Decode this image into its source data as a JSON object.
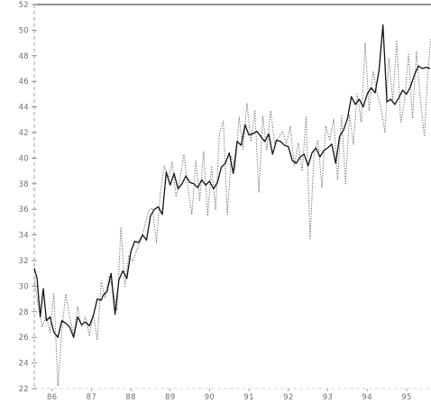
{
  "chart_data": {
    "type": "line",
    "title": "",
    "xlabel": "",
    "ylabel": "",
    "x_tick_labels": [
      "86",
      "87",
      "88",
      "89",
      "90",
      "91",
      "92",
      "93",
      "94",
      "95"
    ],
    "x_tick_positions": [
      1986,
      1987,
      1988,
      1989,
      1990,
      1991,
      1992,
      1993,
      1994,
      1995
    ],
    "xlim": [
      1985.55,
      1995.62
    ],
    "y_tick_labels": [
      "22",
      "24",
      "26",
      "28",
      "30",
      "32",
      "34",
      "36",
      "38",
      "40",
      "42",
      "44",
      "46",
      "48",
      "50",
      "52"
    ],
    "y_ticks": [
      22,
      24,
      26,
      28,
      30,
      32,
      34,
      36,
      38,
      40,
      42,
      44,
      46,
      48,
      50,
      52
    ],
    "ylim": [
      22,
      52
    ],
    "grid": false,
    "legend": "none",
    "series": [
      {
        "style": "solid",
        "color": "#111111",
        "x": [
          1985.55,
          1985.62,
          1985.7,
          1985.78,
          1985.86,
          1985.95,
          1986.05,
          1986.15,
          1986.25,
          1986.35,
          1986.45,
          1986.55,
          1986.65,
          1986.75,
          1986.85,
          1986.95,
          1987.05,
          1987.15,
          1987.25,
          1987.3,
          1987.4,
          1987.5,
          1987.6,
          1987.7,
          1987.8,
          1987.9,
          1988.0,
          1988.1,
          1988.2,
          1988.3,
          1988.4,
          1988.5,
          1988.6,
          1988.7,
          1988.8,
          1988.9,
          1989.0,
          1989.1,
          1989.2,
          1989.3,
          1989.4,
          1989.5,
          1989.6,
          1989.7,
          1989.8,
          1989.9,
          1990.0,
          1990.1,
          1990.2,
          1990.3,
          1990.4,
          1990.5,
          1990.6,
          1990.7,
          1990.8,
          1990.9,
          1991.0,
          1991.1,
          1991.2,
          1991.3,
          1991.4,
          1991.5,
          1991.6,
          1991.7,
          1991.8,
          1991.9,
          1992.0,
          1992.1,
          1992.2,
          1992.3,
          1992.4,
          1992.5,
          1992.6,
          1992.7,
          1992.8,
          1992.9,
          1993.0,
          1993.1,
          1993.2,
          1993.3,
          1993.4,
          1993.5,
          1993.6,
          1993.7,
          1993.8,
          1993.9,
          1994.0,
          1994.1,
          1994.2,
          1994.3,
          1994.4,
          1994.5,
          1994.6,
          1994.7,
          1994.8,
          1994.9,
          1995.0,
          1995.1,
          1995.2,
          1995.3,
          1995.4,
          1995.5,
          1995.6
        ],
        "y": [
          31.4,
          30.6,
          27.6,
          29.8,
          27.3,
          27.6,
          26.4,
          26.0,
          27.3,
          27.1,
          26.8,
          26.0,
          27.6,
          27.0,
          27.2,
          26.9,
          27.7,
          29.0,
          28.9,
          29.3,
          29.6,
          31.0,
          27.8,
          30.5,
          31.2,
          30.6,
          32.7,
          33.5,
          33.4,
          34.0,
          33.6,
          35.5,
          36.0,
          36.2,
          35.6,
          38.9,
          37.9,
          38.8,
          37.6,
          38.0,
          38.6,
          38.1,
          38.0,
          37.7,
          38.3,
          37.9,
          38.2,
          37.6,
          38.1,
          39.3,
          39.6,
          40.4,
          38.8,
          41.3,
          41.0,
          42.6,
          41.8,
          41.9,
          42.1,
          41.7,
          41.3,
          41.9,
          40.3,
          41.4,
          41.3,
          41.0,
          40.9,
          39.8,
          39.6,
          40.1,
          40.3,
          39.4,
          40.4,
          40.8,
          40.1,
          40.6,
          40.8,
          41.1,
          39.6,
          41.7,
          42.2,
          43.1,
          44.8,
          44.2,
          44.6,
          44.0,
          45.0,
          45.5,
          45.1,
          46.8,
          50.4,
          44.4,
          44.6,
          44.2,
          44.7,
          45.3,
          45.0,
          45.6,
          46.5,
          47.2,
          47.0,
          47.1,
          47.0
        ]
      },
      {
        "style": "dotted",
        "color": "#666666",
        "x": [
          1985.55,
          1985.65,
          1985.75,
          1985.85,
          1985.95,
          1986.05,
          1986.15,
          1986.25,
          1986.35,
          1986.45,
          1986.55,
          1986.65,
          1986.75,
          1986.85,
          1986.95,
          1987.05,
          1987.15,
          1987.25,
          1987.35,
          1987.45,
          1987.55,
          1987.65,
          1987.75,
          1987.85,
          1987.95,
          1988.05,
          1988.15,
          1988.25,
          1988.35,
          1988.45,
          1988.55,
          1988.65,
          1988.75,
          1988.85,
          1988.95,
          1989.05,
          1989.15,
          1989.25,
          1989.35,
          1989.45,
          1989.55,
          1989.65,
          1989.75,
          1989.85,
          1989.95,
          1990.05,
          1990.15,
          1990.25,
          1990.35,
          1990.45,
          1990.55,
          1990.65,
          1990.75,
          1990.85,
          1990.95,
          1991.05,
          1991.15,
          1991.25,
          1991.35,
          1991.45,
          1991.55,
          1991.65,
          1991.75,
          1991.85,
          1991.95,
          1992.05,
          1992.15,
          1992.25,
          1992.35,
          1992.45,
          1992.55,
          1992.65,
          1992.75,
          1992.85,
          1992.95,
          1993.05,
          1993.15,
          1993.25,
          1993.35,
          1993.45,
          1993.55,
          1993.65,
          1993.75,
          1993.85,
          1993.95,
          1994.05,
          1994.15,
          1994.25,
          1994.35,
          1994.45,
          1994.55,
          1994.65,
          1994.75,
          1994.85,
          1994.95,
          1995.05,
          1995.15,
          1995.25,
          1995.35,
          1995.45,
          1995.55,
          1995.62
        ],
        "y": [
          30.6,
          28.5,
          26.8,
          27.7,
          26.4,
          29.4,
          22.2,
          26.6,
          29.4,
          27.6,
          26.2,
          28.4,
          26.8,
          27.6,
          26.1,
          27.8,
          25.8,
          30.4,
          29.1,
          30.8,
          29.6,
          28.1,
          34.6,
          30.0,
          32.4,
          31.9,
          32.8,
          33.5,
          34.6,
          35.9,
          36.1,
          33.4,
          37.2,
          39.4,
          38.4,
          39.7,
          37.0,
          38.4,
          40.3,
          37.7,
          35.6,
          39.8,
          36.7,
          40.5,
          35.5,
          39.4,
          36.0,
          41.9,
          42.9,
          35.6,
          40.2,
          39.2,
          43.2,
          40.7,
          44.3,
          41.3,
          43.7,
          37.3,
          43.3,
          40.6,
          43.7,
          41.2,
          41.6,
          42.1,
          41.1,
          42.5,
          39.4,
          41.2,
          39.0,
          43.2,
          33.7,
          40.3,
          41.4,
          37.7,
          42.5,
          41.4,
          43.1,
          38.3,
          43.3,
          38.0,
          43.4,
          41.1,
          45.0,
          42.8,
          49.0,
          43.7,
          46.8,
          45.1,
          43.9,
          42.0,
          47.8,
          44.5,
          49.2,
          42.8,
          44.5,
          48.2,
          43.1,
          48.3,
          44.6,
          41.7,
          47.1,
          49.4
        ]
      }
    ]
  }
}
